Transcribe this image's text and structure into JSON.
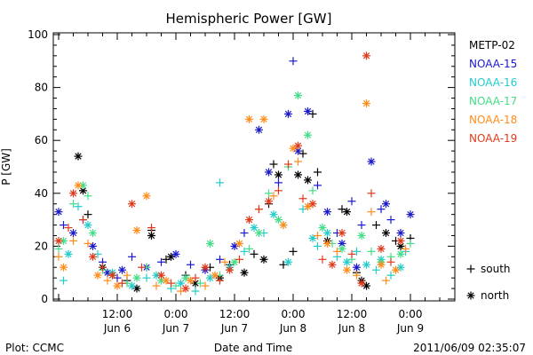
{
  "chart_data": {
    "type": "scatter",
    "title": "Hemispheric Power [GW]",
    "xlabel": "Date and Time",
    "ylabel": "P [GW]",
    "ylim": [
      0,
      100
    ],
    "xlim": [
      0,
      80
    ],
    "x_unit": "hours since 2011/06/06 00:00",
    "yticks": [
      "0",
      "20",
      "40",
      "60",
      "80",
      "100"
    ],
    "xticks": [
      {
        "x": 12,
        "time": "12:00",
        "date": "Jun 6"
      },
      {
        "x": 24,
        "time": "0:00",
        "date": "Jun 7"
      },
      {
        "x": 36,
        "time": "12:00",
        "date": "Jun 7"
      },
      {
        "x": 48,
        "time": "0:00",
        "date": "Jun 8"
      },
      {
        "x": 60,
        "time": "12:00",
        "date": "Jun 8"
      },
      {
        "x": 72,
        "time": "0:00",
        "date": "Jun 9"
      }
    ],
    "grid": false,
    "legend_position": "right",
    "markers": [
      {
        "symbol": "+",
        "label": "south"
      },
      {
        "symbol": "*",
        "label": "north"
      }
    ],
    "series": [
      {
        "name": "METP-02",
        "color": "#000000",
        "points": [
          [
            4,
            54,
            "north"
          ],
          [
            5,
            41,
            "north"
          ],
          [
            6,
            32,
            "south"
          ],
          [
            9,
            12,
            "north"
          ],
          [
            14,
            7,
            "south"
          ],
          [
            16,
            4,
            "north"
          ],
          [
            19,
            26,
            "south"
          ],
          [
            19,
            24,
            "north"
          ],
          [
            22,
            15,
            "south"
          ],
          [
            23,
            16,
            "north"
          ],
          [
            26,
            9,
            "south"
          ],
          [
            28,
            6,
            "north"
          ],
          [
            31,
            12,
            "south"
          ],
          [
            33,
            8,
            "north"
          ],
          [
            35,
            13,
            "south"
          ],
          [
            38,
            10,
            "north"
          ],
          [
            40,
            17,
            "south"
          ],
          [
            42,
            15,
            "north"
          ],
          [
            43,
            36,
            "south"
          ],
          [
            44,
            51,
            "south"
          ],
          [
            45,
            47,
            "north"
          ],
          [
            46,
            13,
            "south"
          ],
          [
            48,
            18,
            "south"
          ],
          [
            49,
            47,
            "north"
          ],
          [
            50,
            55,
            "south"
          ],
          [
            51,
            45,
            "north"
          ],
          [
            52,
            70,
            "south"
          ],
          [
            53,
            48,
            "south"
          ],
          [
            55,
            22,
            "north"
          ],
          [
            58,
            34,
            "south"
          ],
          [
            59,
            33,
            "north"
          ],
          [
            61,
            10,
            "south"
          ],
          [
            62,
            7,
            "north"
          ],
          [
            63,
            5,
            "north"
          ],
          [
            65,
            28,
            "south"
          ],
          [
            67,
            25,
            "north"
          ],
          [
            69,
            22,
            "south"
          ],
          [
            70,
            20,
            "north"
          ],
          [
            72,
            23,
            "south"
          ]
        ]
      },
      {
        "name": "NOAA-15",
        "color": "#1a1acc",
        "points": [
          [
            0,
            33,
            "north"
          ],
          [
            1,
            28,
            "south"
          ],
          [
            3,
            25,
            "north"
          ],
          [
            5,
            30,
            "south"
          ],
          [
            7,
            20,
            "north"
          ],
          [
            9,
            14,
            "south"
          ],
          [
            10,
            10,
            "north"
          ],
          [
            12,
            8,
            "south"
          ],
          [
            13,
            11,
            "north"
          ],
          [
            15,
            16,
            "south"
          ],
          [
            18,
            12,
            "north"
          ],
          [
            21,
            14,
            "south"
          ],
          [
            24,
            17,
            "north"
          ],
          [
            27,
            13,
            "south"
          ],
          [
            30,
            11,
            "north"
          ],
          [
            33,
            15,
            "south"
          ],
          [
            36,
            20,
            "north"
          ],
          [
            38,
            25,
            "south"
          ],
          [
            41,
            64,
            "north"
          ],
          [
            43,
            48,
            "north"
          ],
          [
            45,
            44,
            "south"
          ],
          [
            47,
            70,
            "north"
          ],
          [
            48,
            90,
            "south"
          ],
          [
            49,
            56,
            "north"
          ],
          [
            51,
            71,
            "north"
          ],
          [
            53,
            43,
            "south"
          ],
          [
            55,
            33,
            "north"
          ],
          [
            57,
            25,
            "south"
          ],
          [
            58,
            21,
            "north"
          ],
          [
            60,
            37,
            "south"
          ],
          [
            61,
            12,
            "north"
          ],
          [
            62,
            28,
            "south"
          ],
          [
            64,
            52,
            "north"
          ],
          [
            66,
            34,
            "south"
          ],
          [
            67,
            36,
            "north"
          ],
          [
            68,
            30,
            "south"
          ],
          [
            70,
            25,
            "north"
          ],
          [
            72,
            32,
            "north"
          ]
        ]
      },
      {
        "name": "NOAA-16",
        "color": "#22cccc",
        "points": [
          [
            1,
            7,
            "south"
          ],
          [
            2,
            17,
            "north"
          ],
          [
            4,
            35,
            "south"
          ],
          [
            6,
            28,
            "north"
          ],
          [
            8,
            17,
            "south"
          ],
          [
            11,
            10,
            "north"
          ],
          [
            13,
            6,
            "south"
          ],
          [
            15,
            5,
            "north"
          ],
          [
            18,
            8,
            "south"
          ],
          [
            20,
            9,
            "north"
          ],
          [
            23,
            4,
            "south"
          ],
          [
            25,
            6,
            "north"
          ],
          [
            28,
            3,
            "south"
          ],
          [
            31,
            8,
            "north"
          ],
          [
            33,
            44,
            "south"
          ],
          [
            35,
            12,
            "north"
          ],
          [
            38,
            18,
            "south"
          ],
          [
            40,
            27,
            "north"
          ],
          [
            42,
            25,
            "south"
          ],
          [
            44,
            32,
            "north"
          ],
          [
            46,
            28,
            "south"
          ],
          [
            47,
            14,
            "north"
          ],
          [
            50,
            34,
            "south"
          ],
          [
            52,
            23,
            "north"
          ],
          [
            53,
            20,
            "south"
          ],
          [
            55,
            25,
            "north"
          ],
          [
            57,
            16,
            "south"
          ],
          [
            59,
            14,
            "north"
          ],
          [
            61,
            18,
            "south"
          ],
          [
            63,
            13,
            "north"
          ],
          [
            65,
            11,
            "south"
          ],
          [
            66,
            15,
            "north"
          ],
          [
            68,
            9,
            "south"
          ],
          [
            70,
            12,
            "north"
          ],
          [
            71,
            18,
            "south"
          ]
        ]
      },
      {
        "name": "NOAA-17",
        "color": "#44dd88",
        "points": [
          [
            0,
            19,
            "south"
          ],
          [
            1,
            22,
            "north"
          ],
          [
            3,
            36,
            "south"
          ],
          [
            5,
            43,
            "north"
          ],
          [
            6,
            39,
            "south"
          ],
          [
            7,
            25,
            "north"
          ],
          [
            9,
            11,
            "south"
          ],
          [
            11,
            9,
            "north"
          ],
          [
            14,
            6,
            "south"
          ],
          [
            16,
            8,
            "north"
          ],
          [
            18,
            12,
            "south"
          ],
          [
            21,
            7,
            "north"
          ],
          [
            24,
            5,
            "south"
          ],
          [
            26,
            8,
            "north"
          ],
          [
            29,
            6,
            "south"
          ],
          [
            31,
            21,
            "north"
          ],
          [
            33,
            9,
            "south"
          ],
          [
            36,
            14,
            "north"
          ],
          [
            39,
            19,
            "south"
          ],
          [
            41,
            25,
            "north"
          ],
          [
            43,
            40,
            "south"
          ],
          [
            45,
            30,
            "north"
          ],
          [
            47,
            50,
            "south"
          ],
          [
            49,
            77,
            "north"
          ],
          [
            51,
            62,
            "north"
          ],
          [
            52,
            41,
            "south"
          ],
          [
            54,
            27,
            "north"
          ],
          [
            56,
            21,
            "south"
          ],
          [
            58,
            19,
            "north"
          ],
          [
            60,
            15,
            "south"
          ],
          [
            62,
            24,
            "north"
          ],
          [
            64,
            18,
            "south"
          ],
          [
            66,
            14,
            "north"
          ],
          [
            68,
            16,
            "south"
          ],
          [
            70,
            17,
            "north"
          ],
          [
            72,
            21,
            "south"
          ]
        ]
      },
      {
        "name": "NOAA-18",
        "color": "#ff8c1a",
        "points": [
          [
            0,
            16,
            "south"
          ],
          [
            1,
            12,
            "north"
          ],
          [
            3,
            22,
            "south"
          ],
          [
            4,
            43,
            "north"
          ],
          [
            6,
            21,
            "south"
          ],
          [
            8,
            9,
            "north"
          ],
          [
            10,
            7,
            "south"
          ],
          [
            12,
            5,
            "north"
          ],
          [
            14,
            9,
            "south"
          ],
          [
            16,
            26,
            "north"
          ],
          [
            18,
            39,
            "north"
          ],
          [
            20,
            5,
            "south"
          ],
          [
            22,
            7,
            "north"
          ],
          [
            25,
            3,
            "south"
          ],
          [
            27,
            7,
            "north"
          ],
          [
            30,
            5,
            "south"
          ],
          [
            32,
            9,
            "north"
          ],
          [
            34,
            14,
            "south"
          ],
          [
            37,
            21,
            "north"
          ],
          [
            39,
            68,
            "north"
          ],
          [
            41,
            34,
            "south"
          ],
          [
            42,
            68,
            "north"
          ],
          [
            44,
            39,
            "south"
          ],
          [
            46,
            28,
            "north"
          ],
          [
            48,
            57,
            "north"
          ],
          [
            49,
            52,
            "south"
          ],
          [
            51,
            35,
            "north"
          ],
          [
            53,
            24,
            "south"
          ],
          [
            55,
            21,
            "north"
          ],
          [
            57,
            18,
            "south"
          ],
          [
            59,
            11,
            "north"
          ],
          [
            61,
            9,
            "south"
          ],
          [
            63,
            74,
            "north"
          ],
          [
            64,
            33,
            "south"
          ],
          [
            66,
            13,
            "north"
          ],
          [
            67,
            7,
            "south"
          ],
          [
            69,
            11,
            "north"
          ],
          [
            71,
            19,
            "south"
          ]
        ]
      },
      {
        "name": "NOAA-19",
        "color": "#e03a1a",
        "points": [
          [
            0,
            22,
            "north"
          ],
          [
            2,
            27,
            "south"
          ],
          [
            3,
            40,
            "north"
          ],
          [
            5,
            30,
            "south"
          ],
          [
            7,
            16,
            "north"
          ],
          [
            9,
            12,
            "south"
          ],
          [
            11,
            9,
            "north"
          ],
          [
            13,
            6,
            "south"
          ],
          [
            15,
            36,
            "north"
          ],
          [
            17,
            12,
            "south"
          ],
          [
            19,
            27,
            "south"
          ],
          [
            21,
            9,
            "north"
          ],
          [
            23,
            6,
            "south"
          ],
          [
            26,
            4,
            "north"
          ],
          [
            28,
            8,
            "south"
          ],
          [
            30,
            12,
            "north"
          ],
          [
            33,
            7,
            "south"
          ],
          [
            35,
            11,
            "north"
          ],
          [
            37,
            15,
            "south"
          ],
          [
            39,
            30,
            "north"
          ],
          [
            41,
            34,
            "south"
          ],
          [
            43,
            37,
            "north"
          ],
          [
            45,
            41,
            "south"
          ],
          [
            47,
            51,
            "south"
          ],
          [
            49,
            58,
            "north"
          ],
          [
            50,
            38,
            "south"
          ],
          [
            52,
            36,
            "north"
          ],
          [
            54,
            15,
            "south"
          ],
          [
            56,
            13,
            "north"
          ],
          [
            58,
            25,
            "north"
          ],
          [
            60,
            17,
            "south"
          ],
          [
            62,
            6,
            "north"
          ],
          [
            63,
            92,
            "north"
          ],
          [
            64,
            40,
            "south"
          ],
          [
            66,
            19,
            "north"
          ],
          [
            68,
            14,
            "south"
          ],
          [
            70,
            22,
            "north"
          ]
        ]
      }
    ]
  },
  "footer": {
    "left": "Plot: CCMC",
    "center": "Date and Time",
    "right": "2011/06/09 02:35:07"
  }
}
